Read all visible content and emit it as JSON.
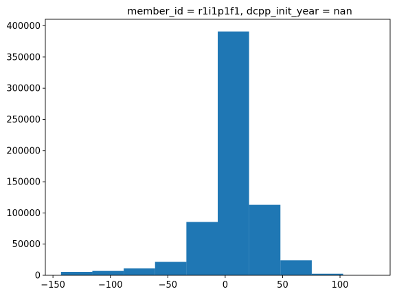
{
  "chart_data": {
    "type": "bar",
    "title": "member_id = r1i1p1f1, dcpp_init_year = nan",
    "xlabel": "",
    "ylabel": "",
    "bins": [
      {
        "x0": -143,
        "x1": -115.7,
        "count": 5500
      },
      {
        "x0": -115.7,
        "x1": -88.4,
        "count": 7000
      },
      {
        "x0": -88.4,
        "x1": -61.1,
        "count": 11000
      },
      {
        "x0": -61.1,
        "x1": -33.8,
        "count": 21500
      },
      {
        "x0": -33.8,
        "x1": -6.5,
        "count": 85500
      },
      {
        "x0": -6.5,
        "x1": 20.8,
        "count": 391000
      },
      {
        "x0": 20.8,
        "x1": 48.1,
        "count": 113000
      },
      {
        "x0": 48.1,
        "x1": 75.4,
        "count": 24000
      },
      {
        "x0": 75.4,
        "x1": 102.7,
        "count": 2500
      },
      {
        "x0": 102.7,
        "x1": 130,
        "count": 300
      }
    ],
    "xlim": [
      -156.65,
      143.65
    ],
    "ylim": [
      0,
      410550
    ],
    "x_ticks": [
      -150,
      -100,
      -50,
      0,
      50,
      100
    ],
    "x_tick_labels": [
      "−150",
      "−100",
      "−50",
      "0",
      "50",
      "100"
    ],
    "y_ticks": [
      0,
      50000,
      100000,
      150000,
      200000,
      250000,
      300000,
      350000,
      400000
    ],
    "y_tick_labels": [
      "0",
      "50000",
      "100000",
      "150000",
      "200000",
      "250000",
      "300000",
      "350000",
      "400000"
    ],
    "bar_color": "#1f77b4",
    "grid": false,
    "legend": "none"
  }
}
